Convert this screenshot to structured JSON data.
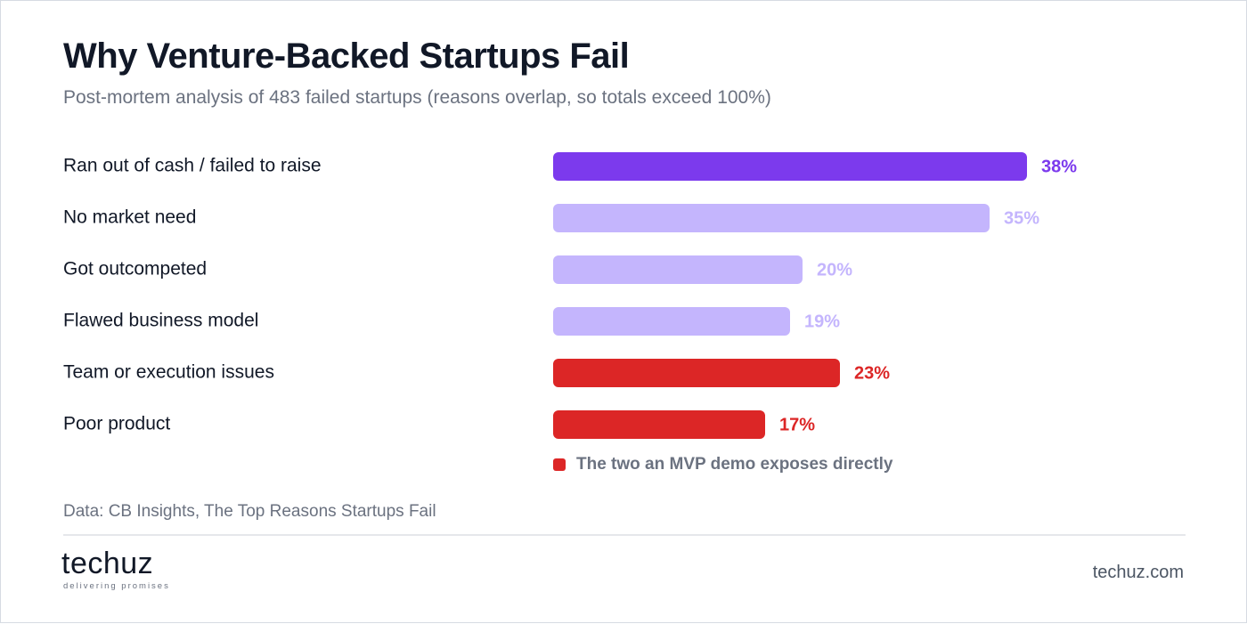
{
  "header": {
    "title": "Why Venture-Backed Startups Fail",
    "subtitle": "Post-mortem analysis of 483 failed startups (reasons overlap, so totals exceed 100%)"
  },
  "chart_data": {
    "type": "bar",
    "orientation": "horizontal",
    "title": "Why Venture-Backed Startups Fail",
    "subtitle": "Post-mortem analysis of 483 failed startups (reasons overlap, so totals exceed 100%)",
    "categories": [
      "Ran out of cash / failed to raise",
      "No market need",
      "Got outcompeted",
      "Flawed business model",
      "Team or execution issues",
      "Poor product"
    ],
    "values": [
      38,
      35,
      20,
      19,
      23,
      17
    ],
    "value_labels": [
      "38%",
      "35%",
      "20%",
      "19%",
      "23%",
      "17%"
    ],
    "unit": "%",
    "xlim": [
      0,
      38
    ],
    "grid": false,
    "bar_colors": [
      "#7c3aed",
      "#c4b5fd",
      "#c4b5fd",
      "#c4b5fd",
      "#dc2626",
      "#dc2626"
    ],
    "label_colors": [
      "#7c3aed",
      "#c4b5fd",
      "#c4b5fd",
      "#c4b5fd",
      "#dc2626",
      "#dc2626"
    ],
    "legend": {
      "placement": "below-bars",
      "entries": [
        {
          "label": "The two an MVP demo exposes directly",
          "color": "#dc2626"
        }
      ]
    }
  },
  "footer": {
    "source": "Data: CB Insights, The Top Reasons Startups Fail",
    "logo_text": "techuz",
    "logo_tagline": "delivering promises",
    "site": "techuz.com"
  },
  "colors": {
    "accent_purple": "#7c3aed",
    "light_purple": "#c4b5fd",
    "highlight_red": "#dc2626",
    "muted_text": "#6b7280"
  }
}
